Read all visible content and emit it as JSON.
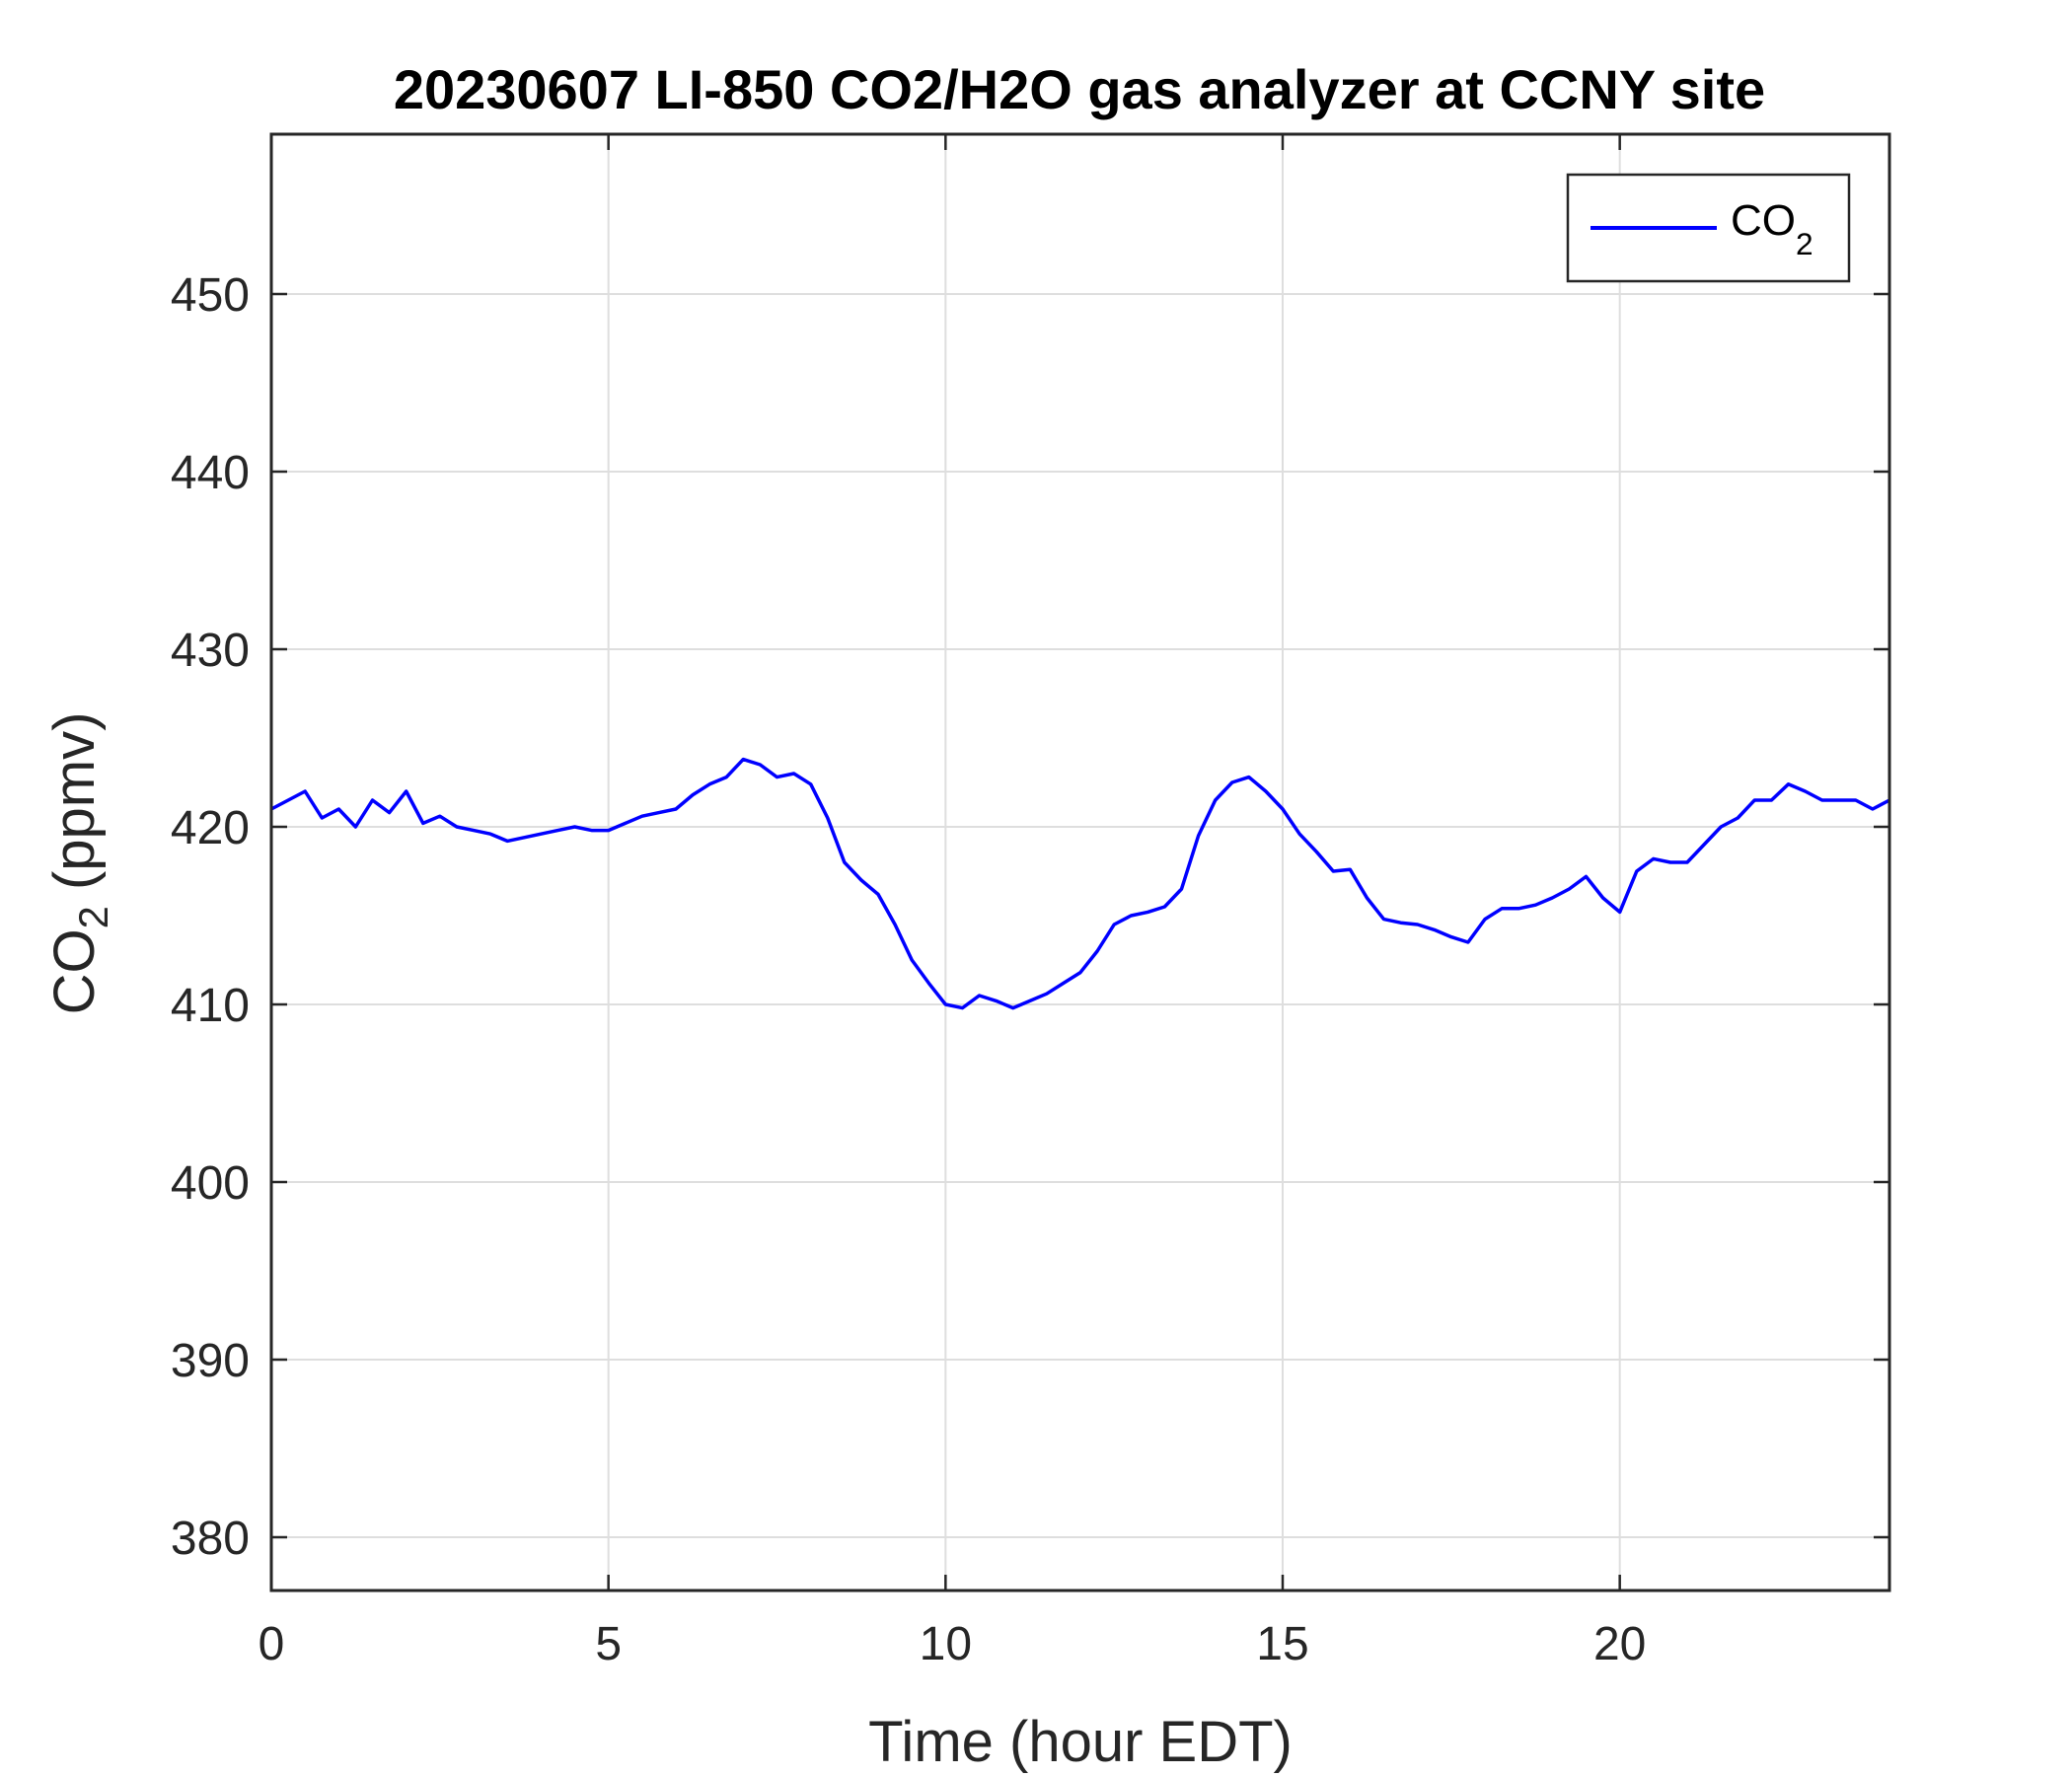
{
  "chart_data": {
    "type": "line",
    "title": "20230607 LI-850 CO2/H2O gas analyzer at CCNY site",
    "xlabel": "Time (hour EDT)",
    "ylabel": {
      "main": "CO",
      "sub": "2",
      "rest": " (ppmv)"
    },
    "xlim": [
      0,
      24
    ],
    "ylim": [
      377,
      459
    ],
    "xticks": [
      0,
      5,
      10,
      15,
      20
    ],
    "yticks": [
      380,
      390,
      400,
      410,
      420,
      430,
      440,
      450
    ],
    "grid": true,
    "legend_position": "top-right",
    "series": [
      {
        "name": {
          "main": "CO",
          "sub": "2"
        },
        "color": "#0000ff",
        "x": [
          0,
          0.25,
          0.5,
          0.75,
          1,
          1.25,
          1.5,
          1.75,
          2,
          2.25,
          2.5,
          2.75,
          3,
          3.25,
          3.5,
          3.75,
          4,
          4.25,
          4.5,
          4.75,
          5,
          5.25,
          5.5,
          5.75,
          6,
          6.25,
          6.5,
          6.75,
          7,
          7.25,
          7.5,
          7.75,
          8,
          8.25,
          8.5,
          8.75,
          9,
          9.25,
          9.5,
          9.75,
          10,
          10.25,
          10.5,
          10.75,
          11,
          11.25,
          11.5,
          11.75,
          12,
          12.25,
          12.5,
          12.75,
          13,
          13.25,
          13.5,
          13.75,
          14,
          14.25,
          14.5,
          14.75,
          15,
          15.25,
          15.5,
          15.75,
          16,
          16.25,
          16.5,
          16.75,
          17,
          17.25,
          17.5,
          17.75,
          18,
          18.25,
          18.5,
          18.75,
          19,
          19.25,
          19.5,
          19.75,
          20,
          20.25,
          20.5,
          20.75,
          21,
          21.25,
          21.5,
          21.75,
          22,
          22.25,
          22.5,
          22.75,
          23,
          23.25,
          23.5,
          23.75,
          24
        ],
        "y": [
          421.0,
          421.5,
          422.0,
          420.5,
          421.0,
          420.0,
          421.5,
          420.8,
          422.0,
          420.2,
          420.6,
          420.0,
          419.8,
          419.6,
          419.2,
          419.4,
          419.6,
          419.8,
          420.0,
          419.8,
          419.8,
          420.2,
          420.6,
          420.8,
          421.0,
          421.8,
          422.4,
          422.8,
          423.8,
          423.5,
          422.8,
          423.0,
          422.4,
          420.5,
          418.0,
          417.0,
          416.2,
          414.5,
          412.5,
          411.2,
          410.0,
          409.8,
          410.5,
          410.2,
          409.8,
          410.2,
          410.6,
          411.2,
          411.8,
          413.0,
          414.5,
          415.0,
          415.2,
          415.5,
          416.5,
          419.5,
          421.5,
          422.5,
          422.8,
          422.0,
          421.0,
          419.6,
          418.6,
          417.5,
          417.6,
          416.0,
          414.8,
          414.6,
          414.5,
          414.2,
          413.8,
          413.5,
          414.8,
          415.4,
          415.4,
          415.6,
          416.0,
          416.5,
          417.2,
          416.0,
          415.2,
          417.5,
          418.2,
          418.0,
          418.0,
          419.0,
          420.0,
          420.5,
          421.5,
          421.5,
          422.4,
          422.0,
          421.5,
          421.5,
          421.5,
          421.0,
          421.5
        ]
      }
    ]
  }
}
